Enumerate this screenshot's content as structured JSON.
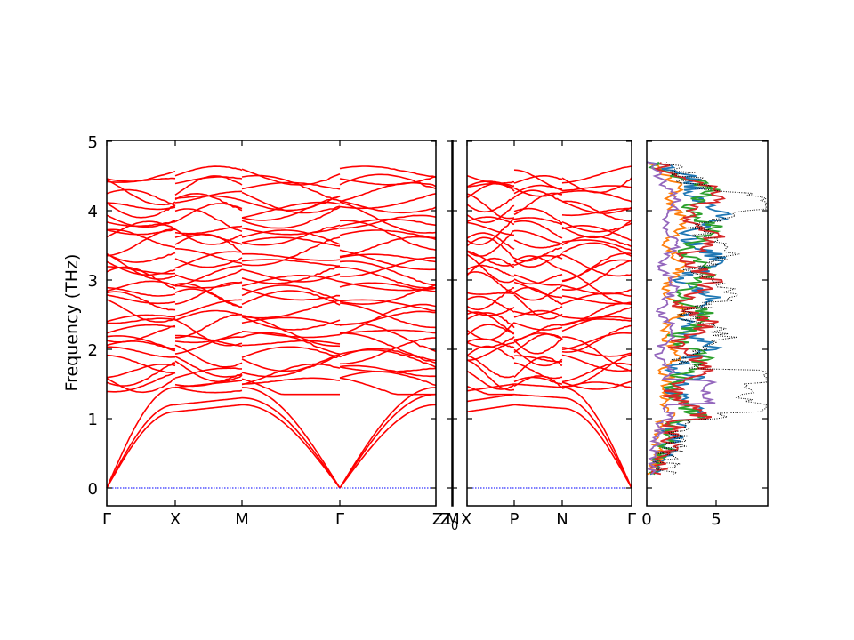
{
  "chart_data": {
    "type": "line",
    "title": "",
    "ylabel": "Frequency (THz)",
    "ylim": [
      -0.27,
      5.0
    ],
    "yticks": [
      "0",
      "1",
      "2",
      "3",
      "4",
      "5"
    ],
    "panels": [
      {
        "name": "band-structure-main",
        "segments": [
          "Γ-X",
          "X-M",
          "M-Γ",
          "Γ-Z"
        ],
        "high_symmetry_labels": [
          "Γ",
          "X",
          "M",
          "Γ",
          "Z"
        ],
        "line_color": "#ff0000",
        "zero_line_color": "#0000ff"
      },
      {
        "name": "band-structure-short",
        "segments": [
          "Z0-M"
        ],
        "high_symmetry_labels": [
          "Z0",
          "M"
        ],
        "line_color": "#ff0000"
      },
      {
        "name": "band-structure-right",
        "segments": [
          "X-P",
          "P-N",
          "N-Γ"
        ],
        "high_symmetry_labels": [
          "X",
          "P",
          "N",
          "Γ"
        ],
        "line_color": "#ff0000",
        "zero_line_color": "#0000ff"
      },
      {
        "name": "partial-dos",
        "xlim": [
          0,
          8.7
        ],
        "xticks": [
          "0",
          "5"
        ],
        "series": [
          {
            "color": "#1f77b4"
          },
          {
            "color": "#ff7f0e"
          },
          {
            "color": "#2ca02c"
          },
          {
            "color": "#d62728"
          },
          {
            "color": "#9467bd"
          },
          {
            "color": "#000000",
            "style": "dotted"
          }
        ]
      }
    ]
  }
}
